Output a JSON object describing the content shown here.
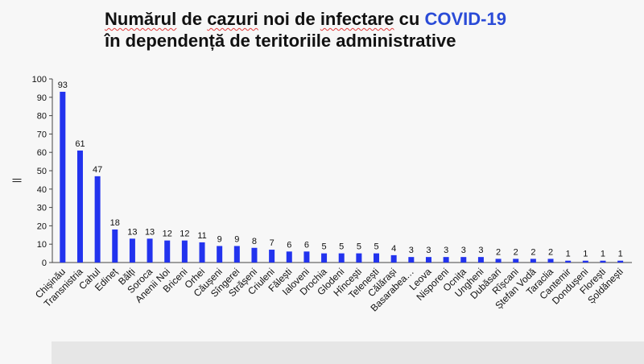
{
  "title": {
    "word_1": "Numărul",
    "word_2": "de",
    "word_3": "cazuri",
    "word_4": "noi de",
    "word_5": "infectare",
    "word_6": "cu",
    "highlight": "COVID-19",
    "line_2": "în dependență de teritoriile administrative"
  },
  "colors": {
    "bar": "#2233ee",
    "accent": "#2a4bd7"
  },
  "chart_data": {
    "type": "bar",
    "title": "Numărul de cazuri noi de infectare cu COVID-19 în dependență de teritoriile administrative",
    "xlabel": "",
    "ylabel": "||",
    "ylim": [
      0,
      100
    ],
    "yticks": [
      0,
      10,
      20,
      30,
      40,
      50,
      60,
      70,
      80,
      90,
      100
    ],
    "grid": false,
    "categories": [
      "Chișinău",
      "Transnistria",
      "Cahul",
      "Edineț",
      "Bălți",
      "Soroca",
      "Anenii Noi",
      "Briceni",
      "Orhei",
      "Căușeni",
      "Sîngerei",
      "Strășeni",
      "Criuleni",
      "Fălești",
      "Ialoveni",
      "Drochia",
      "Glodeni",
      "Hîncești",
      "Telenești",
      "Călărași",
      "Basarabea…",
      "Leova",
      "Nisporeni",
      "Ocnița",
      "Ungheni",
      "Dubăsari",
      "Rîșcani",
      "Ștefan Vodă",
      "Taraclia",
      "Cantemir",
      "Dondușeni",
      "Florești",
      "Șoldănești"
    ],
    "values": [
      93,
      61,
      47,
      18,
      13,
      13,
      12,
      12,
      11,
      9,
      9,
      8,
      7,
      6,
      6,
      5,
      5,
      5,
      5,
      4,
      3,
      3,
      3,
      3,
      3,
      2,
      2,
      2,
      2,
      1,
      1,
      1,
      1
    ]
  }
}
